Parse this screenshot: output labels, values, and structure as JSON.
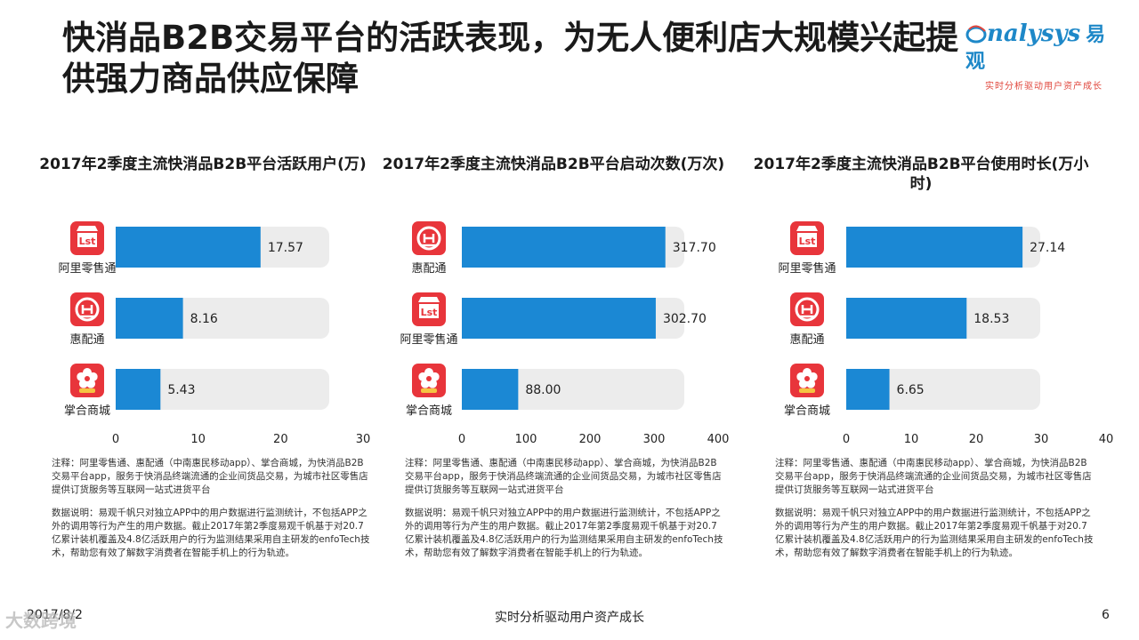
{
  "slide": {
    "title": "快消品B2B交易平台的活跃表现，为无人便利店大规模兴起提供强力商品供应保障",
    "logo_main": "nalysys",
    "logo_cn": "易观",
    "logo_sub": "实时分析驱动用户资产成长",
    "footer_date": "2017/8/2",
    "footer_center": "实时分析驱动用户资产成长",
    "page_number": "6",
    "watermark": "大数跨境"
  },
  "colors": {
    "bar": "#1b88d4",
    "track": "#ececec",
    "icon_red": "#e8353b"
  },
  "chart_data": [
    {
      "type": "bar",
      "orientation": "horizontal",
      "title": "2017年2季度主流快消品B2B平台活跃用户(万)",
      "categories": [
        "阿里零售通",
        "惠配通",
        "掌合商城"
      ],
      "values": [
        17.57,
        8.16,
        5.43
      ],
      "value_labels": [
        "17.57",
        "8.16",
        "5.43"
      ],
      "icons": [
        "lst-store-icon",
        "huipeitong-icon",
        "zhanghe-flower-icon"
      ],
      "xlim": [
        0,
        30
      ],
      "xticks": [
        "0",
        "10",
        "20",
        "30"
      ],
      "note": "注释：阿里零售通、惠配通（中南惠民移动app）、掌合商城，为快消品B2B交易平台app，服务于快消品终端流通的企业间货品交易，为城市社区零售店提供订货服务等互联网一站式进货平台",
      "data_note": "数据说明：易观千帆只对独立APP中的用户数据进行监测统计，不包括APP之外的调用等行为产生的用户数据。截止2017年第2季度易观千帆基于对20.7亿累计装机覆盖及4.8亿活跃用户的行为监测结果采用自主研发的enfoTech技术，帮助您有效了解数字消费者在智能手机上的行为轨迹。"
    },
    {
      "type": "bar",
      "orientation": "horizontal",
      "title": "2017年2季度主流快消品B2B平台启动次数(万次)",
      "categories": [
        "惠配通",
        "阿里零售通",
        "掌合商城"
      ],
      "values": [
        317.7,
        302.7,
        88.0
      ],
      "value_labels": [
        "317.70",
        "302.70",
        "88.00"
      ],
      "icons": [
        "huipeitong-icon",
        "lst-store-icon",
        "zhanghe-flower-icon"
      ],
      "xlim": [
        0,
        400
      ],
      "xticks": [
        "0",
        "100",
        "200",
        "300",
        "400"
      ],
      "note": "注释：阿里零售通、惠配通（中南惠民移动app）、掌合商城，为快消品B2B交易平台app，服务于快消品终端流通的企业间货品交易，为城市社区零售店提供订货服务等互联网一站式进货平台",
      "data_note": "数据说明：易观千帆只对独立APP中的用户数据进行监测统计，不包括APP之外的调用等行为产生的用户数据。截止2017年第2季度易观千帆基于对20.7亿累计装机覆盖及4.8亿活跃用户的行为监测结果采用自主研发的enfoTech技术，帮助您有效了解数字消费者在智能手机上的行为轨迹。"
    },
    {
      "type": "bar",
      "orientation": "horizontal",
      "title": "2017年2季度主流快消品B2B平台使用时长(万小时)",
      "categories": [
        "阿里零售通",
        "惠配通",
        "掌合商城"
      ],
      "values": [
        27.14,
        18.53,
        6.65
      ],
      "value_labels": [
        "27.14",
        "18.53",
        "6.65"
      ],
      "icons": [
        "lst-store-icon",
        "huipeitong-icon",
        "zhanghe-flower-icon"
      ],
      "xlim": [
        0,
        40
      ],
      "xticks": [
        "0",
        "10",
        "20",
        "30",
        "40"
      ],
      "note": "注释：阿里零售通、惠配通（中南惠民移动app）、掌合商城，为快消品B2B交易平台app，服务于快消品终端流通的企业间货品交易，为城市社区零售店提供订货服务等互联网一站式进货平台",
      "data_note": "数据说明：易观千帆只对独立APP中的用户数据进行监测统计，不包括APP之外的调用等行为产生的用户数据。截止2017年第2季度易观千帆基于对20.7亿累计装机覆盖及4.8亿活跃用户的行为监测结果采用自主研发的enfoTech技术，帮助您有效了解数字消费者在智能手机上的行为轨迹。"
    }
  ]
}
